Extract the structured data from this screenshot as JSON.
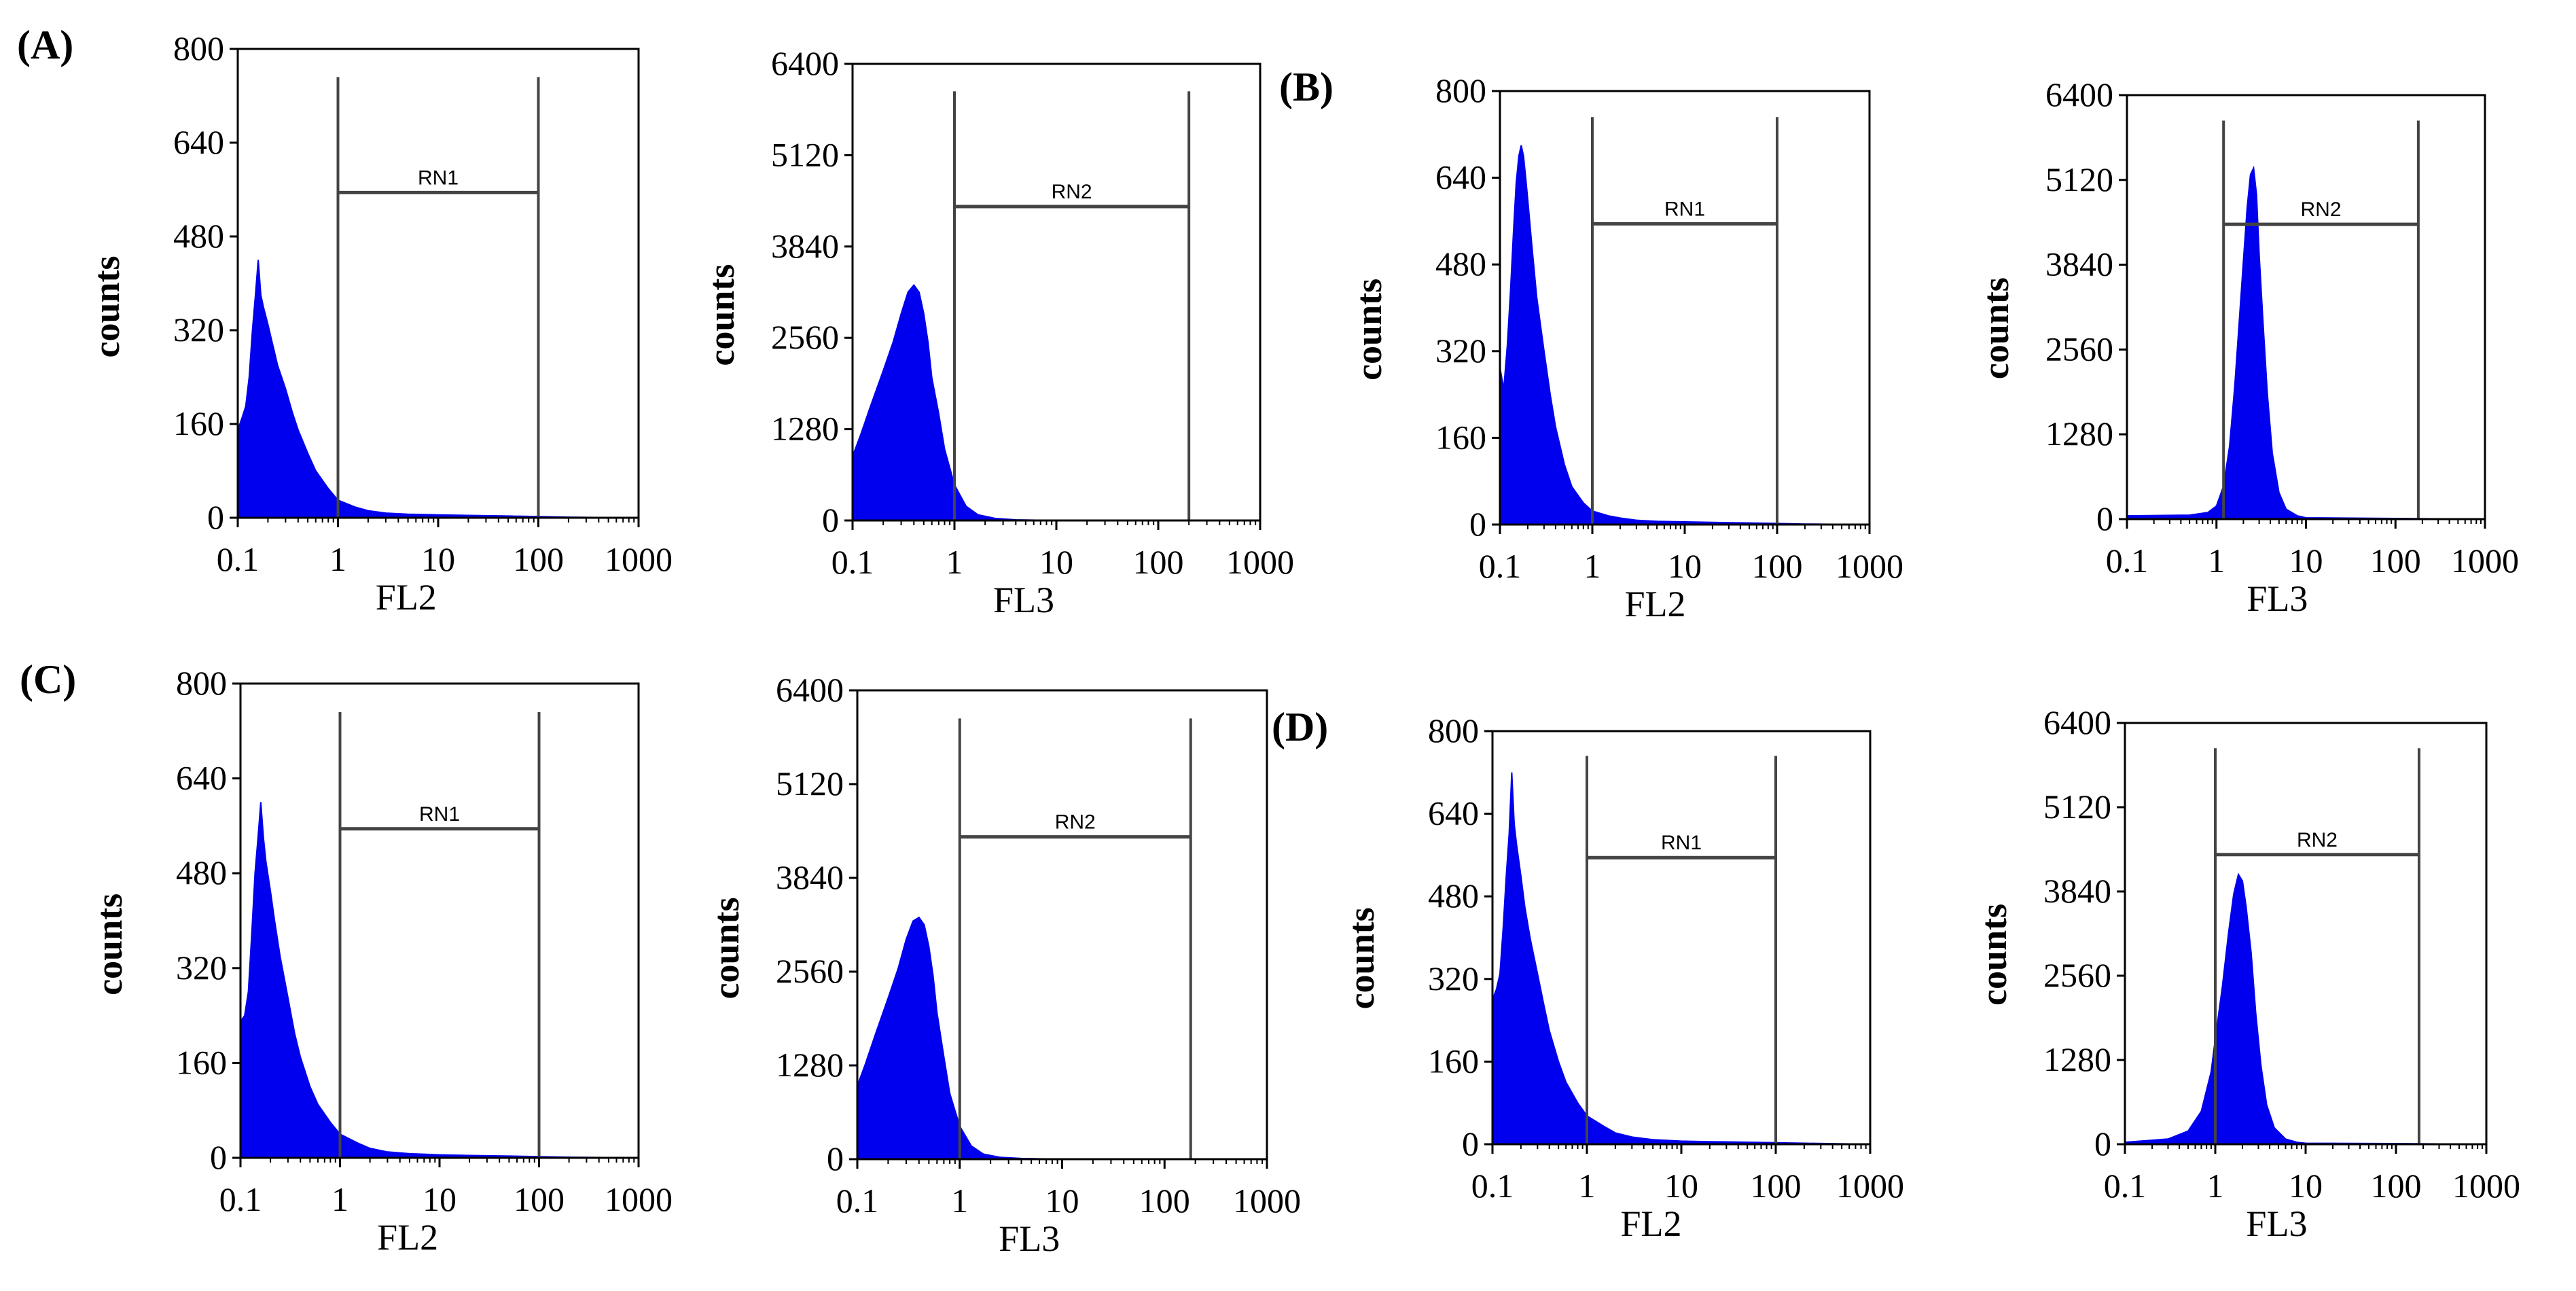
{
  "figure": {
    "accent_color": "#0000ee",
    "frame_color": "#000000",
    "gate_color": "#444444"
  },
  "chart_data": [
    {
      "id": "A-FL2",
      "panel_label": "(A)",
      "type": "histogram",
      "xlabel": "FL2",
      "ylabel": "counts",
      "x_scale": "log",
      "xlim": [
        0.1,
        1000
      ],
      "ylim": [
        0,
        800
      ],
      "x_ticks": [
        "0.1",
        "1",
        "10",
        "100",
        "1000"
      ],
      "y_ticks": [
        "0",
        "160",
        "320",
        "480",
        "640",
        "800"
      ],
      "gate": {
        "label": "RN1",
        "x_range": [
          1,
          100
        ],
        "y_level": 555
      },
      "series": {
        "name": "counts",
        "x": [
          0.1,
          0.11,
          0.12,
          0.13,
          0.14,
          0.15,
          0.16,
          0.17,
          0.18,
          0.2,
          0.22,
          0.25,
          0.3,
          0.35,
          0.4,
          0.5,
          0.6,
          0.8,
          1,
          1.5,
          2,
          3,
          5,
          10,
          20,
          50,
          100,
          200,
          1000
        ],
        "y": [
          150,
          170,
          190,
          240,
          320,
          380,
          440,
          380,
          360,
          330,
          300,
          260,
          220,
          180,
          150,
          110,
          80,
          50,
          30,
          18,
          12,
          8,
          6,
          5,
          4,
          3,
          2,
          1,
          0
        ]
      }
    },
    {
      "id": "A-FL3",
      "panel_label": "",
      "type": "histogram",
      "xlabel": "FL3",
      "ylabel": "counts",
      "x_scale": "log",
      "xlim": [
        0.1,
        1000
      ],
      "ylim": [
        0,
        6400
      ],
      "x_ticks": [
        "0.1",
        "1",
        "10",
        "100",
        "1000"
      ],
      "y_ticks": [
        "0",
        "1280",
        "2560",
        "3840",
        "5120",
        "6400"
      ],
      "gate": {
        "label": "RN2",
        "x_range": [
          1,
          200
        ],
        "y_level": 4400
      },
      "series": {
        "name": "counts",
        "x": [
          0.1,
          0.12,
          0.15,
          0.2,
          0.25,
          0.3,
          0.35,
          0.4,
          0.45,
          0.5,
          0.55,
          0.6,
          0.7,
          0.8,
          1,
          1.3,
          1.7,
          2.5,
          4,
          10,
          100,
          1000
        ],
        "y": [
          900,
          1200,
          1600,
          2100,
          2500,
          2900,
          3200,
          3300,
          3200,
          2900,
          2500,
          2000,
          1500,
          1000,
          500,
          200,
          80,
          30,
          10,
          0,
          0,
          0
        ]
      }
    },
    {
      "id": "B-FL2",
      "panel_label": "(B)",
      "type": "histogram",
      "xlabel": "FL2",
      "ylabel": "counts",
      "x_scale": "log",
      "xlim": [
        0.1,
        1000
      ],
      "ylim": [
        0,
        800
      ],
      "x_ticks": [
        "0.1",
        "1",
        "10",
        "100",
        "1000"
      ],
      "y_ticks": [
        "0",
        "160",
        "320",
        "480",
        "640",
        "800"
      ],
      "gate": {
        "label": "RN1",
        "x_range": [
          1,
          100
        ],
        "y_level": 555
      },
      "series": {
        "name": "counts",
        "x": [
          0.1,
          0.11,
          0.12,
          0.13,
          0.14,
          0.15,
          0.16,
          0.17,
          0.18,
          0.19,
          0.2,
          0.22,
          0.25,
          0.3,
          0.35,
          0.4,
          0.5,
          0.6,
          0.8,
          1,
          1.5,
          2,
          3,
          5,
          10,
          20,
          50,
          100,
          200,
          1000
        ],
        "y": [
          290,
          250,
          330,
          430,
          540,
          630,
          680,
          700,
          680,
          640,
          600,
          520,
          420,
          320,
          240,
          180,
          110,
          70,
          40,
          25,
          16,
          12,
          8,
          6,
          5,
          4,
          3,
          2,
          1,
          0
        ]
      }
    },
    {
      "id": "B-FL3",
      "panel_label": "",
      "type": "histogram",
      "xlabel": "FL3",
      "ylabel": "counts",
      "x_scale": "log",
      "xlim": [
        0.1,
        1000
      ],
      "ylim": [
        0,
        6400
      ],
      "x_ticks": [
        "0.1",
        "1",
        "10",
        "100",
        "1000"
      ],
      "y_ticks": [
        "0",
        "1280",
        "2560",
        "3840",
        "5120",
        "6400"
      ],
      "gate": {
        "label": "RN2",
        "x_range": [
          1.2,
          180
        ],
        "y_level": 4450
      },
      "series": {
        "name": "counts",
        "x": [
          0.1,
          0.5,
          0.8,
          1,
          1.2,
          1.4,
          1.6,
          1.8,
          2,
          2.2,
          2.4,
          2.6,
          2.8,
          3,
          3.3,
          3.7,
          4.2,
          5,
          6,
          8,
          10,
          100,
          1000
        ],
        "y": [
          50,
          60,
          100,
          200,
          500,
          1100,
          2000,
          3000,
          3900,
          4700,
          5200,
          5300,
          4900,
          4000,
          3000,
          1900,
          1000,
          400,
          150,
          50,
          20,
          10,
          0
        ]
      }
    },
    {
      "id": "C-FL2",
      "panel_label": "(C)",
      "type": "histogram",
      "xlabel": "FL2",
      "ylabel": "counts",
      "x_scale": "log",
      "xlim": [
        0.1,
        1000
      ],
      "ylim": [
        0,
        800
      ],
      "x_ticks": [
        "0.1",
        "1",
        "10",
        "100",
        "1000"
      ],
      "y_ticks": [
        "0",
        "160",
        "320",
        "480",
        "640",
        "800"
      ],
      "gate": {
        "label": "RN1",
        "x_range": [
          1,
          100
        ],
        "y_level": 555
      },
      "series": {
        "name": "counts",
        "x": [
          0.1,
          0.11,
          0.12,
          0.13,
          0.14,
          0.15,
          0.16,
          0.17,
          0.18,
          0.2,
          0.22,
          0.25,
          0.3,
          0.35,
          0.4,
          0.5,
          0.6,
          0.8,
          1,
          1.5,
          2,
          3,
          5,
          10,
          20,
          50,
          100,
          200,
          1000
        ],
        "y": [
          230,
          240,
          280,
          380,
          480,
          540,
          600,
          540,
          500,
          450,
          400,
          340,
          270,
          210,
          170,
          120,
          90,
          60,
          40,
          25,
          16,
          10,
          7,
          5,
          4,
          3,
          2,
          1,
          0
        ]
      }
    },
    {
      "id": "C-FL3",
      "panel_label": "",
      "type": "histogram",
      "xlabel": "FL3",
      "ylabel": "counts",
      "x_scale": "log",
      "xlim": [
        0.1,
        1000
      ],
      "ylim": [
        0,
        6400
      ],
      "x_ticks": [
        "0.1",
        "1",
        "10",
        "100",
        "1000"
      ],
      "y_ticks": [
        "0",
        "1280",
        "2560",
        "3840",
        "5120",
        "6400"
      ],
      "gate": {
        "label": "RN2",
        "x_range": [
          1,
          180
        ],
        "y_level": 4400
      },
      "series": {
        "name": "counts",
        "x": [
          0.1,
          0.12,
          0.15,
          0.2,
          0.25,
          0.3,
          0.35,
          0.4,
          0.45,
          0.5,
          0.55,
          0.6,
          0.7,
          0.8,
          1,
          1.3,
          1.7,
          2.5,
          4,
          10,
          100,
          1000
        ],
        "y": [
          1000,
          1300,
          1700,
          2200,
          2600,
          3000,
          3250,
          3300,
          3200,
          2900,
          2500,
          2000,
          1400,
          900,
          450,
          180,
          70,
          25,
          10,
          0,
          0,
          0
        ]
      }
    },
    {
      "id": "D-FL2",
      "panel_label": "(D)",
      "type": "histogram",
      "xlabel": "FL2",
      "ylabel": "counts",
      "x_scale": "log",
      "xlim": [
        0.1,
        1000
      ],
      "ylim": [
        0,
        800
      ],
      "x_ticks": [
        "0.1",
        "1",
        "10",
        "100",
        "1000"
      ],
      "y_ticks": [
        "0",
        "160",
        "320",
        "480",
        "640",
        "800"
      ],
      "gate": {
        "label": "RN1",
        "x_range": [
          1,
          100
        ],
        "y_level": 555
      },
      "series": {
        "name": "counts",
        "x": [
          0.1,
          0.11,
          0.12,
          0.13,
          0.14,
          0.15,
          0.16,
          0.17,
          0.18,
          0.2,
          0.22,
          0.25,
          0.3,
          0.35,
          0.4,
          0.5,
          0.6,
          0.8,
          1,
          1.5,
          2,
          3,
          5,
          10,
          20,
          50,
          100,
          200,
          1000
        ],
        "y": [
          280,
          300,
          330,
          420,
          520,
          600,
          720,
          620,
          580,
          520,
          460,
          400,
          330,
          270,
          220,
          160,
          120,
          80,
          55,
          35,
          22,
          14,
          9,
          6,
          5,
          4,
          3,
          2,
          0
        ]
      }
    },
    {
      "id": "D-FL3",
      "panel_label": "",
      "type": "histogram",
      "xlabel": "FL3",
      "ylabel": "counts",
      "x_scale": "log",
      "xlim": [
        0.1,
        1000
      ],
      "ylim": [
        0,
        6400
      ],
      "x_ticks": [
        "0.1",
        "1",
        "10",
        "100",
        "1000"
      ],
      "y_ticks": [
        "0",
        "1280",
        "2560",
        "3840",
        "5120",
        "6400"
      ],
      "gate": {
        "label": "RN2",
        "x_range": [
          1,
          180
        ],
        "y_level": 4400
      },
      "series": {
        "name": "counts",
        "x": [
          0.1,
          0.3,
          0.5,
          0.7,
          0.9,
          1,
          1.2,
          1.4,
          1.6,
          1.8,
          2,
          2.2,
          2.5,
          2.8,
          3.2,
          3.7,
          4.5,
          6,
          8,
          10,
          100,
          1000
        ],
        "y": [
          30,
          80,
          200,
          500,
          1100,
          1600,
          2400,
          3200,
          3800,
          4100,
          4000,
          3600,
          2900,
          2000,
          1200,
          600,
          250,
          80,
          30,
          15,
          10,
          0
        ]
      }
    }
  ]
}
